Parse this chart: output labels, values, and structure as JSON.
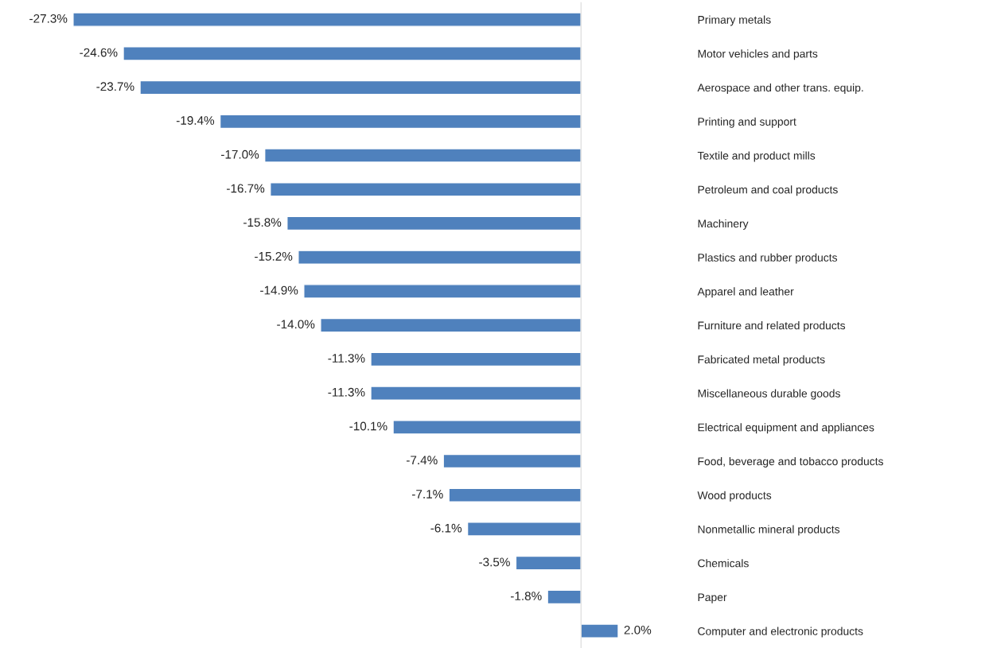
{
  "chart_data": {
    "type": "bar",
    "orientation": "horizontal",
    "color": "#4f81bd",
    "categories": [
      "Primary metals",
      "Motor vehicles and parts",
      "Aerospace and other trans. equip.",
      "Printing and support",
      "Textile and product mills",
      "Petroleum and coal products",
      "Machinery",
      "Plastics and rubber products",
      "Apparel and leather",
      "Furniture and related products",
      "Fabricated metal products",
      "Miscellaneous durable goods",
      "Electrical equipment and appliances",
      "Food, beverage and tobacco products",
      "Wood products",
      "Nonmetallic mineral products",
      "Chemicals",
      "Paper",
      "Computer and electronic products"
    ],
    "values": [
      -27.3,
      -24.6,
      -23.7,
      -19.4,
      -17.0,
      -16.7,
      -15.8,
      -15.2,
      -14.9,
      -14.0,
      -11.3,
      -11.3,
      -10.1,
      -7.4,
      -7.1,
      -6.1,
      -3.5,
      -1.8,
      2.0
    ],
    "value_labels": [
      "-27.3%",
      "-24.6%",
      "-23.7%",
      "-19.4%",
      "-17.0%",
      "-16.7%",
      "-15.8%",
      "-15.2%",
      "-14.9%",
      "-14.0%",
      "-11.3%",
      "-11.3%",
      "-10.1%",
      "-7.4%",
      "-7.1%",
      "-6.1%",
      "-3.5%",
      "-1.8%",
      "2.0%"
    ],
    "grid": false,
    "legend": false
  }
}
